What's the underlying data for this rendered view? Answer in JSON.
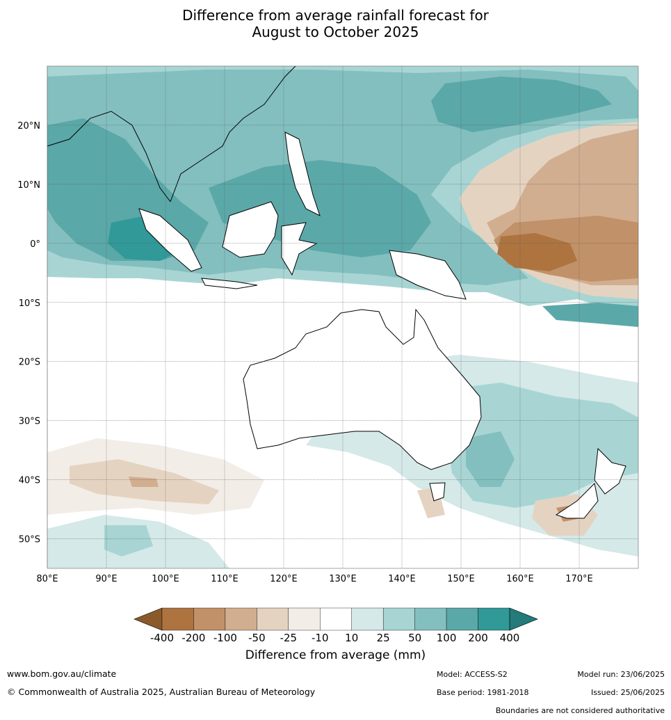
{
  "title": {
    "line1": "Difference from average rainfall forecast for",
    "line2": "August to October 2025"
  },
  "map": {
    "projection": "equirectangular",
    "lon_range": [
      80,
      180
    ],
    "lat_range": [
      -55,
      30
    ],
    "lon_ticks": [
      "80°E",
      "90°E",
      "100°E",
      "110°E",
      "120°E",
      "130°E",
      "140°E",
      "150°E",
      "160°E",
      "170°E"
    ],
    "lat_ticks": [
      "20°N",
      "10°N",
      "0°",
      "10°S",
      "20°S",
      "30°S",
      "40°S",
      "50°S"
    ],
    "grid": true
  },
  "colorbar": {
    "title": "Difference from average (mm)",
    "tick_labels": [
      "-400",
      "-200",
      "-100",
      "-50",
      "-25",
      "-10",
      "10",
      "25",
      "50",
      "100",
      "200",
      "400"
    ],
    "colors": [
      "#8b5a2b",
      "#ad7440",
      "#c19169",
      "#d2ae90",
      "#e5d3c1",
      "#f2ede7",
      "#ffffff",
      "#d4e9e8",
      "#a8d5d4",
      "#83bfbf",
      "#5ba8a9",
      "#319998",
      "#237b7a"
    ],
    "extend": "both"
  },
  "footer": {
    "url": "www.bom.gov.au/climate",
    "copyright": "© Commonwealth of Australia 2025, Australian Bureau of Meteorology",
    "model": "Model: ACCESS-S2",
    "base_period": "Base period: 1981-2018",
    "model_run": "Model run: 23/06/2025",
    "issued": "Issued: 25/06/2025",
    "disclaimer": "Boundaries are not considered authoritative"
  }
}
